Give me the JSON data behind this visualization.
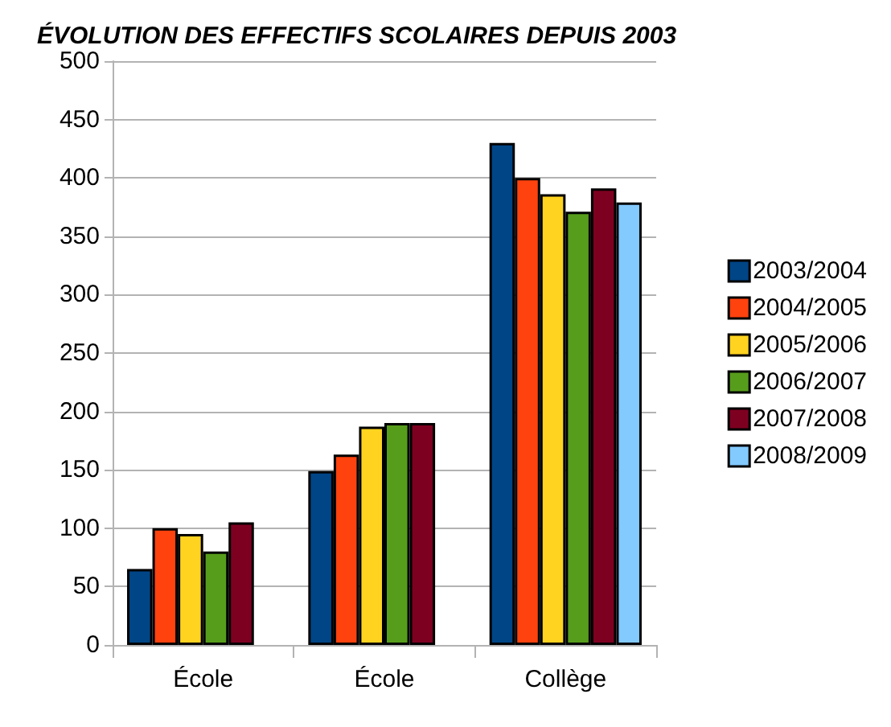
{
  "chart_data": {
    "type": "bar",
    "title": "ÉVOLUTION DES EFFECTIFS SCOLAIRES DEPUIS 2003",
    "categories": [
      "École",
      "École",
      "Collège"
    ],
    "series": [
      {
        "name": "2003/2004",
        "color": "#004586",
        "values": [
          65,
          149,
          430
        ]
      },
      {
        "name": "2004/2005",
        "color": "#ff420e",
        "values": [
          100,
          163,
          400
        ]
      },
      {
        "name": "2005/2006",
        "color": "#ffd320",
        "values": [
          95,
          187,
          386
        ]
      },
      {
        "name": "2006/2007",
        "color": "#579d1c",
        "values": [
          80,
          190,
          371
        ]
      },
      {
        "name": "2007/2008",
        "color": "#7e0021",
        "values": [
          105,
          190,
          391
        ]
      },
      {
        "name": "2008/2009",
        "color": "#83caff",
        "values": [
          null,
          null,
          379
        ]
      }
    ],
    "ylim": [
      0,
      500
    ],
    "yticks": [
      0,
      50,
      100,
      150,
      200,
      250,
      300,
      350,
      400,
      450,
      500
    ],
    "grid": "y",
    "legend": "right"
  }
}
